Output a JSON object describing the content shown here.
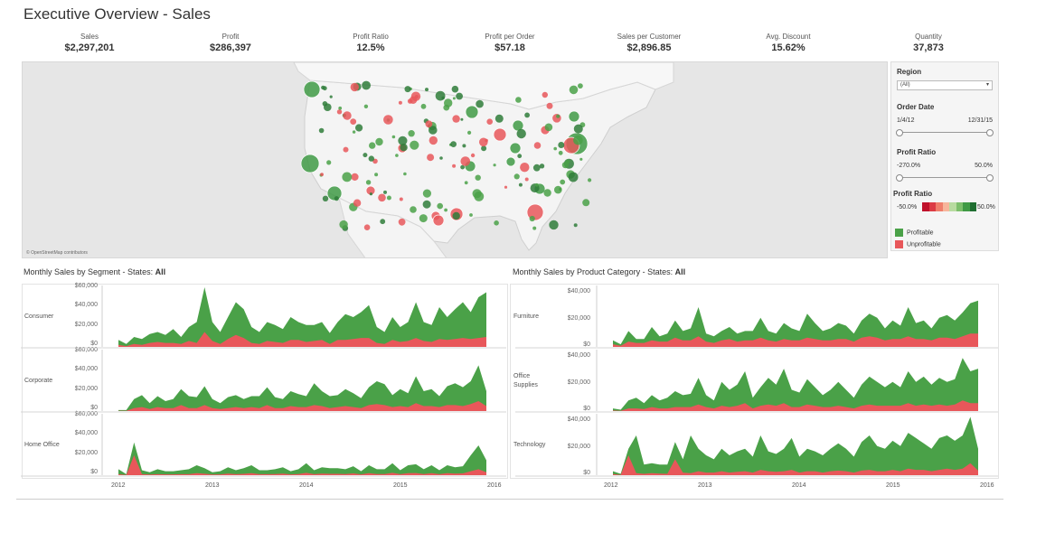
{
  "dashboard": {
    "title": "Executive Overview - Sales"
  },
  "kpis": [
    {
      "label": "Sales",
      "value": "$2,297,201"
    },
    {
      "label": "Profit",
      "value": "$286,397"
    },
    {
      "label": "Profit Ratio",
      "value": "12.5%"
    },
    {
      "label": "Profit per Order",
      "value": "$57.18"
    },
    {
      "label": "Sales per Customer",
      "value": "$2,896.85"
    },
    {
      "label": "Avg. Discount",
      "value": "15.62%"
    },
    {
      "label": "Quantity",
      "value": "37,873"
    }
  ],
  "map": {
    "credit": "© OpenStreetMap contributors"
  },
  "filters": {
    "region_label": "Region",
    "region_value": "(All)",
    "order_date_label": "Order Date",
    "order_date_min": "1/4/12",
    "order_date_max": "12/31/15",
    "profit_ratio_label": "Profit Ratio",
    "profit_ratio_min": "-270.0%",
    "profit_ratio_max": "50.0%",
    "legend_title": "Profit Ratio",
    "legend_min": "-50.0%",
    "legend_max": "50.0%",
    "legend_profitable": "Profitable",
    "legend_unprofitable": "Unprofitable"
  },
  "colors": {
    "profitable": "#4aa148",
    "unprofitable": "#e8575a",
    "legend_scale": [
      "#c0112b",
      "#dc3b45",
      "#ef7e6b",
      "#f7b59b",
      "#b8dba0",
      "#7cbf6b",
      "#3f9a45",
      "#1f6e31"
    ]
  },
  "segment_section": {
    "title_prefix": "Monthly Sales by Segment - States: ",
    "title_value": "All",
    "rows": [
      "Consumer",
      "Corporate",
      "Home Office"
    ],
    "y_ticks": [
      "$60,000",
      "$40,000",
      "$20,000",
      "$0"
    ]
  },
  "category_section": {
    "title_prefix": "Monthly Sales by Product Category - States: ",
    "title_value": "All",
    "rows": [
      "Furniture",
      "Office Supplies",
      "Technology"
    ],
    "y_ticks": [
      "$40,000",
      "$20,000",
      "$0"
    ]
  },
  "x_ticks": [
    "2012",
    "2013",
    "2014",
    "2015",
    "2016"
  ],
  "chart_data": [
    {
      "type": "area",
      "title": "Monthly Sales by Segment - States: All",
      "facet": "Consumer",
      "x_start": "2012-01",
      "x_end": "2015-12",
      "ylim": [
        0,
        60000
      ],
      "series": [
        {
          "name": "Profitable",
          "values": [
            7000,
            3000,
            10000,
            8000,
            13000,
            15000,
            12000,
            18000,
            10000,
            20000,
            25000,
            60000,
            25000,
            15000,
            30000,
            45000,
            38000,
            20000,
            15000,
            25000,
            22000,
            18000,
            30000,
            25000,
            22000,
            22000,
            25000,
            14000,
            25000,
            33000,
            30000,
            35000,
            42000,
            20000,
            15000,
            30000,
            20000,
            25000,
            45000,
            25000,
            22000,
            40000,
            30000,
            38000,
            45000,
            35000,
            50000,
            55000
          ]
        },
        {
          "name": "Unprofitable",
          "values": [
            2000,
            800,
            3000,
            2000,
            4000,
            5000,
            4000,
            4000,
            3000,
            6000,
            4000,
            15000,
            6000,
            3000,
            8000,
            12000,
            9000,
            4000,
            3000,
            6000,
            5000,
            4000,
            7000,
            7000,
            5000,
            6000,
            7000,
            3000,
            7000,
            7000,
            8000,
            9000,
            9000,
            4000,
            3000,
            7000,
            5000,
            6000,
            9000,
            6000,
            5000,
            8000,
            7000,
            8000,
            9000,
            8000,
            9000,
            10000
          ]
        }
      ]
    },
    {
      "type": "area",
      "title": "Monthly Sales by Segment - States: All",
      "facet": "Corporate",
      "x_start": "2012-01",
      "x_end": "2015-12",
      "ylim": [
        0,
        60000
      ],
      "series": [
        {
          "name": "Profitable",
          "values": [
            1000,
            1000,
            12000,
            16000,
            8000,
            15000,
            10000,
            12000,
            22000,
            15000,
            14000,
            25000,
            12000,
            8000,
            14000,
            16000,
            12000,
            15000,
            15000,
            24000,
            14000,
            12000,
            20000,
            17000,
            15000,
            28000,
            20000,
            15000,
            16000,
            22000,
            18000,
            13000,
            24000,
            30000,
            27000,
            16000,
            22000,
            18000,
            35000,
            20000,
            22000,
            15000,
            25000,
            28000,
            24000,
            30000,
            46000,
            20000
          ]
        },
        {
          "name": "Unprofitable",
          "values": [
            300,
            300,
            3000,
            4000,
            2000,
            4000,
            3000,
            3000,
            6000,
            3000,
            3000,
            6000,
            3000,
            2000,
            3000,
            4000,
            3000,
            4000,
            3000,
            6000,
            3000,
            3000,
            5000,
            4000,
            4000,
            6000,
            5000,
            3000,
            4000,
            5000,
            4000,
            3000,
            6000,
            7000,
            6000,
            4000,
            5000,
            4000,
            8000,
            5000,
            5000,
            4000,
            6000,
            6000,
            5000,
            7000,
            10000,
            5000
          ]
        }
      ]
    },
    {
      "type": "area",
      "title": "Monthly Sales by Segment - States: All",
      "facet": "Home Office",
      "x_start": "2012-01",
      "x_end": "2015-12",
      "ylim": [
        0,
        60000
      ],
      "series": [
        {
          "name": "Profitable",
          "values": [
            6000,
            1000,
            33000,
            5000,
            3000,
            6000,
            4000,
            4000,
            5000,
            6000,
            10000,
            7000,
            3000,
            4000,
            8000,
            5000,
            7000,
            10000,
            5000,
            5000,
            6000,
            8000,
            4000,
            6000,
            12000,
            5000,
            8000,
            7000,
            7000,
            6000,
            9000,
            4000,
            10000,
            6000,
            6000,
            12000,
            5000,
            10000,
            11000,
            6000,
            10000,
            5000,
            10000,
            8000,
            9000,
            20000,
            30000,
            15000
          ]
        },
        {
          "name": "Unprofitable",
          "values": [
            1000,
            200,
            20000,
            1000,
            600,
            1000,
            800,
            800,
            1000,
            1000,
            2000,
            1500,
            600,
            800,
            1600,
            1000,
            1400,
            2000,
            1000,
            1000,
            1200,
            1600,
            800,
            1200,
            2400,
            1000,
            1600,
            1400,
            1400,
            1200,
            1800,
            800,
            2000,
            1200,
            1200,
            2400,
            1000,
            2000,
            2200,
            1200,
            2000,
            1000,
            2000,
            1600,
            1800,
            4000,
            6000,
            3000
          ]
        }
      ]
    },
    {
      "type": "area",
      "title": "Monthly Sales by Product Category - States: All",
      "facet": "Furniture",
      "x_start": "2012-01",
      "x_end": "2015-12",
      "ylim": [
        0,
        45000
      ],
      "series": [
        {
          "name": "Profitable",
          "values": [
            5000,
            2000,
            12000,
            6000,
            6000,
            15000,
            8000,
            10000,
            20000,
            12000,
            14000,
            30000,
            10000,
            8000,
            12000,
            15000,
            10000,
            12000,
            12000,
            22000,
            12000,
            10000,
            18000,
            14000,
            12000,
            25000,
            18000,
            12000,
            14000,
            18000,
            16000,
            10000,
            20000,
            25000,
            22000,
            14000,
            20000,
            16000,
            30000,
            18000,
            20000,
            14000,
            22000,
            24000,
            20000,
            26000,
            33000,
            35000
          ]
        },
        {
          "name": "Unprofitable",
          "values": [
            2000,
            800,
            4000,
            3000,
            3000,
            5000,
            4000,
            4000,
            7000,
            5000,
            5000,
            8000,
            4000,
            3000,
            5000,
            6000,
            4000,
            5000,
            5000,
            7000,
            5000,
            4000,
            6000,
            5000,
            5000,
            7000,
            6000,
            5000,
            5000,
            6000,
            6000,
            4000,
            7000,
            8000,
            7000,
            5000,
            6000,
            6000,
            8000,
            6000,
            6000,
            5000,
            7000,
            7000,
            6000,
            8000,
            10000,
            10000
          ]
        }
      ]
    },
    {
      "type": "area",
      "title": "Monthly Sales by Product Category - States: All",
      "facet": "Office Supplies",
      "x_start": "2012-01",
      "x_end": "2015-12",
      "ylim": [
        0,
        45000
      ],
      "series": [
        {
          "name": "Profitable",
          "values": [
            2000,
            1000,
            8000,
            10000,
            6000,
            12000,
            8000,
            10000,
            15000,
            12000,
            13000,
            25000,
            12000,
            8000,
            22000,
            16000,
            20000,
            30000,
            10000,
            18000,
            25000,
            20000,
            32000,
            16000,
            14000,
            24000,
            18000,
            12000,
            16000,
            22000,
            16000,
            10000,
            20000,
            26000,
            22000,
            18000,
            22000,
            18000,
            30000,
            22000,
            26000,
            20000,
            25000,
            22000,
            24000,
            40000,
            30000,
            32000
          ]
        },
        {
          "name": "Unprofitable",
          "values": [
            400,
            200,
            2000,
            2000,
            1500,
            3000,
            2000,
            2000,
            3000,
            3000,
            3000,
            5000,
            3000,
            2000,
            4000,
            3000,
            4000,
            6000,
            2000,
            4000,
            5000,
            4000,
            6000,
            3000,
            3000,
            5000,
            4000,
            3000,
            3000,
            4000,
            3000,
            2000,
            4000,
            5000,
            4000,
            4000,
            4000,
            4000,
            6000,
            4000,
            5000,
            4000,
            5000,
            4000,
            5000,
            8000,
            6000,
            6000
          ]
        }
      ]
    },
    {
      "type": "area",
      "title": "Monthly Sales by Product Category - States: All",
      "facet": "Technology",
      "x_start": "2012-01",
      "x_end": "2015-12",
      "ylim": [
        0,
        45000
      ],
      "series": [
        {
          "name": "Profitable",
          "values": [
            3000,
            1000,
            20000,
            30000,
            8000,
            9000,
            8000,
            8000,
            25000,
            12000,
            30000,
            20000,
            15000,
            12000,
            20000,
            15000,
            18000,
            20000,
            14000,
            30000,
            18000,
            16000,
            20000,
            28000,
            14000,
            20000,
            18000,
            15000,
            20000,
            24000,
            20000,
            14000,
            25000,
            30000,
            22000,
            20000,
            26000,
            22000,
            32000,
            28000,
            24000,
            20000,
            28000,
            30000,
            26000,
            30000,
            44000,
            20000
          ]
        },
        {
          "name": "Unprofitable",
          "values": [
            800,
            300,
            15000,
            1500,
            1000,
            1500,
            1200,
            1000,
            12000,
            2000,
            1500,
            3000,
            2000,
            2000,
            3000,
            2000,
            2500,
            3000,
            2000,
            4000,
            3000,
            2500,
            3000,
            4000,
            2000,
            3000,
            3000,
            2000,
            3000,
            3500,
            3000,
            2000,
            3500,
            4000,
            3000,
            3000,
            4000,
            3000,
            5000,
            4000,
            4000,
            3000,
            4000,
            5000,
            4000,
            5000,
            9000,
            3500
          ]
        }
      ]
    }
  ]
}
